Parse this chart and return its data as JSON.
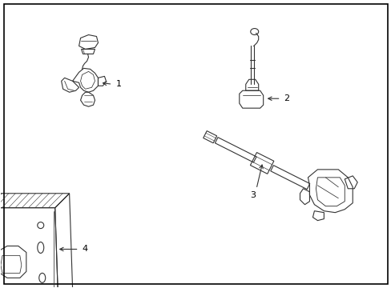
{
  "background_color": "#ffffff",
  "border_color": "#000000",
  "line_color": "#333333",
  "line_width": 0.8,
  "fig_width": 4.89,
  "fig_height": 3.6,
  "dpi": 100
}
